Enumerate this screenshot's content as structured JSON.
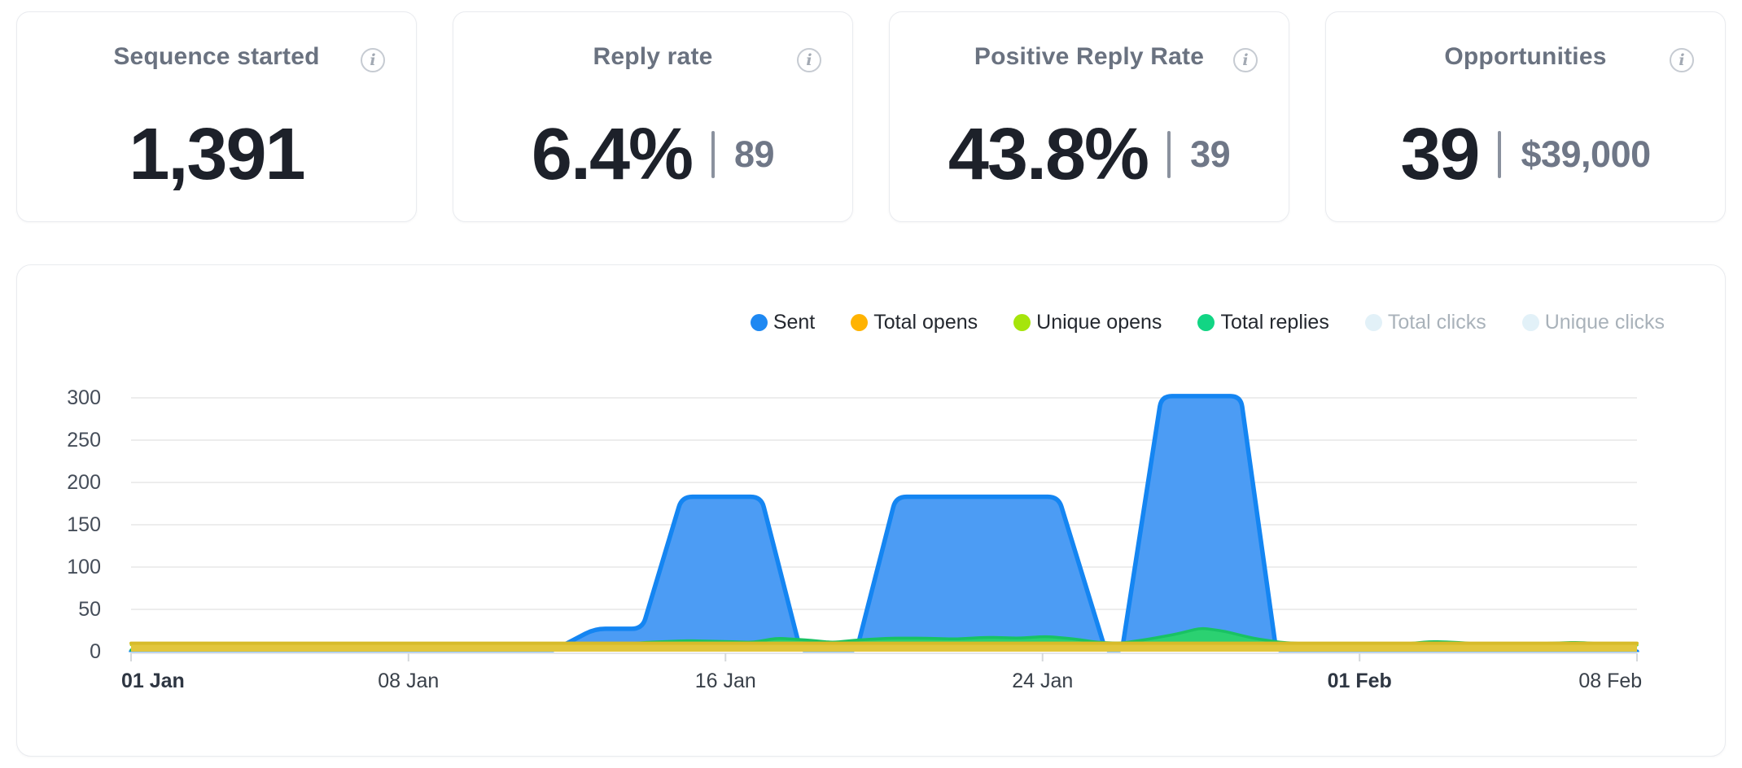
{
  "cards": [
    {
      "title": "Sequence started",
      "value": "1,391",
      "secondary": null
    },
    {
      "title": "Reply rate",
      "value": "6.4%",
      "secondary": "89"
    },
    {
      "title": "Positive Reply Rate",
      "value": "43.8%",
      "secondary": "39"
    },
    {
      "title": "Opportunities",
      "value": "39",
      "secondary": "$39,000"
    }
  ],
  "info_icon_glyph": "i",
  "chart_data": {
    "type": "area",
    "title": "",
    "xlabel": "",
    "ylabel": "",
    "x_unit": "days since 01 Jan",
    "x_range_days": [
      0,
      38
    ],
    "ylim": [
      0,
      300
    ],
    "y_ticks": [
      0,
      50,
      100,
      150,
      200,
      250,
      300
    ],
    "grid": true,
    "legend_position": "top-right",
    "x_ticks": [
      {
        "label": "01 Jan",
        "day": 0,
        "bold": true
      },
      {
        "label": "08 Jan",
        "day": 7,
        "bold": false
      },
      {
        "label": "16 Jan",
        "day": 15,
        "bold": false
      },
      {
        "label": "24 Jan",
        "day": 23,
        "bold": false
      },
      {
        "label": "01 Feb",
        "day": 31,
        "bold": true
      },
      {
        "label": "08 Feb",
        "day": 38,
        "bold": false
      }
    ],
    "legend": [
      {
        "id": "sent",
        "label": "Sent",
        "color": "#1E88F2",
        "active": true
      },
      {
        "id": "total-opens",
        "label": "Total opens",
        "color": "#FFB301",
        "active": true
      },
      {
        "id": "unique-opens",
        "label": "Unique opens",
        "color": "#A6E50B",
        "active": true
      },
      {
        "id": "total-replies",
        "label": "Total replies",
        "color": "#12D584",
        "active": true
      },
      {
        "id": "total-clicks",
        "label": "Total clicks",
        "color": "#E2F1F8",
        "active": false
      },
      {
        "id": "unique-clicks",
        "label": "Unique clicks",
        "color": "#E2F1F8",
        "active": false
      }
    ],
    "series": [
      {
        "name": "Sent",
        "fill": "#4C9CF4",
        "stroke": "#1485F2",
        "stroke_width": 5.5,
        "corner_radius": 13,
        "points": [
          [
            0,
            0
          ],
          [
            10.6,
            0
          ],
          [
            11.7,
            27
          ],
          [
            12.9,
            27
          ],
          [
            13.9,
            183
          ],
          [
            15.9,
            183
          ],
          [
            16.9,
            0
          ],
          [
            18.3,
            0
          ],
          [
            19.3,
            183
          ],
          [
            23.4,
            183
          ],
          [
            24.6,
            0
          ],
          [
            25.0,
            0
          ],
          [
            26.0,
            302
          ],
          [
            28.0,
            302
          ],
          [
            28.9,
            0
          ],
          [
            38,
            0
          ]
        ]
      },
      {
        "name": "Total replies",
        "fill": "#2BD171",
        "stroke": "#19C263",
        "stroke_width": 3.5,
        "corner_radius": 8,
        "points": [
          [
            0,
            2
          ],
          [
            10,
            2
          ],
          [
            11,
            3
          ],
          [
            12,
            7
          ],
          [
            13,
            11
          ],
          [
            14,
            13
          ],
          [
            15,
            12
          ],
          [
            15.7,
            11
          ],
          [
            16.3,
            16
          ],
          [
            17,
            14
          ],
          [
            17.7,
            11
          ],
          [
            18.4,
            14
          ],
          [
            19.2,
            16
          ],
          [
            20,
            16
          ],
          [
            20.8,
            15
          ],
          [
            21.6,
            17
          ],
          [
            22.4,
            16
          ],
          [
            23.1,
            18
          ],
          [
            23.8,
            15
          ],
          [
            24.4,
            11
          ],
          [
            25,
            10
          ],
          [
            25.7,
            15
          ],
          [
            26.4,
            21
          ],
          [
            27,
            28
          ],
          [
            27.6,
            24
          ],
          [
            28.3,
            16
          ],
          [
            29,
            11
          ],
          [
            29.8,
            9
          ],
          [
            30.6,
            8
          ],
          [
            31.4,
            8
          ],
          [
            32.1,
            9
          ],
          [
            32.8,
            12
          ],
          [
            33.5,
            11
          ],
          [
            34.2,
            8
          ],
          [
            35,
            8
          ],
          [
            35.8,
            10
          ],
          [
            36.5,
            11
          ],
          [
            37.2,
            9
          ],
          [
            38,
            8
          ]
        ]
      },
      {
        "name": "Unique opens",
        "fill": "#B2E42C",
        "stroke": "#A5D712",
        "stroke_width": 3,
        "corner_radius": 6,
        "points": [
          [
            0,
            8
          ],
          [
            38,
            8
          ]
        ]
      },
      {
        "name": "Total opens",
        "fill": "#E2C63C",
        "stroke": "#D7BB2A",
        "stroke_width": 4,
        "corner_radius": 6,
        "points": [
          [
            0,
            10
          ],
          [
            38,
            10
          ]
        ]
      }
    ]
  }
}
